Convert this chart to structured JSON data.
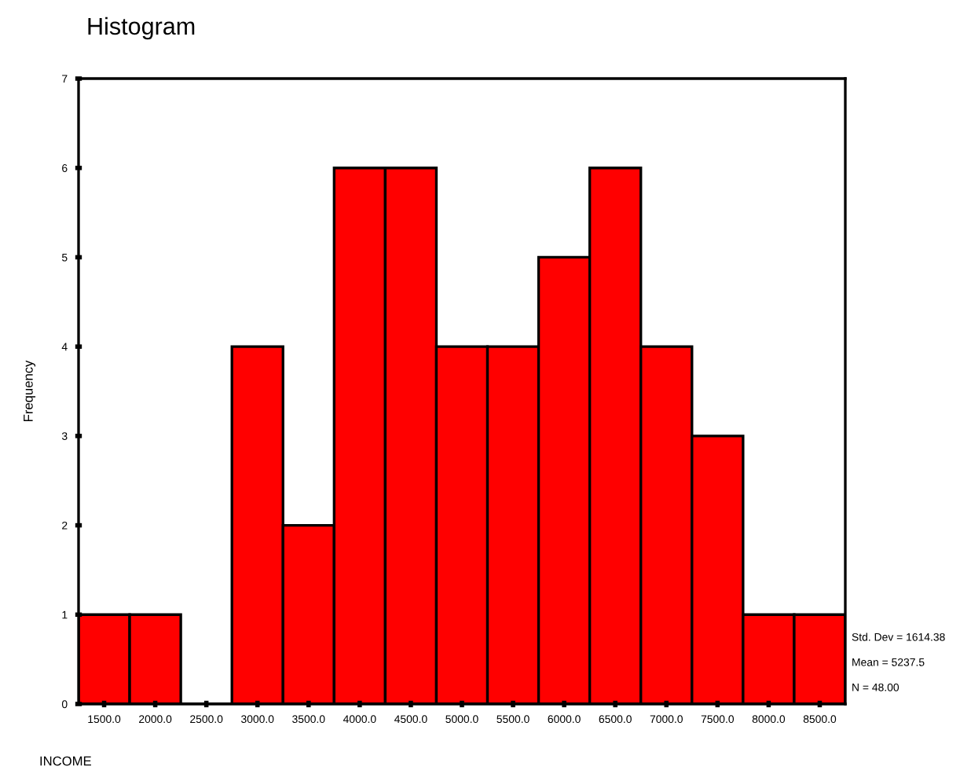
{
  "chart_data": {
    "type": "histogram",
    "title": "Histogram",
    "xlabel": "INCOME",
    "ylabel": "Frequency",
    "bins": [
      1250,
      1750,
      2250,
      2750,
      3250,
      3750,
      4250,
      4750,
      5250,
      5750,
      6250,
      6750,
      7250,
      7750,
      8250,
      8750
    ],
    "values": [
      1,
      1,
      0,
      4,
      2,
      6,
      6,
      4,
      4,
      5,
      6,
      4,
      3,
      1,
      1
    ],
    "color": "#ff0000",
    "xlim": [
      1250,
      8750
    ],
    "xticks": [
      {
        "value": 1500,
        "label": "1500.0"
      },
      {
        "value": 2000,
        "label": "2000.0"
      },
      {
        "value": 2500,
        "label": "2500.0"
      },
      {
        "value": 3000,
        "label": "3000.0"
      },
      {
        "value": 3500,
        "label": "3500.0"
      },
      {
        "value": 4000,
        "label": "4000.0"
      },
      {
        "value": 4500,
        "label": "4500.0"
      },
      {
        "value": 5000,
        "label": "5000.0"
      },
      {
        "value": 5500,
        "label": "5500.0"
      },
      {
        "value": 6000,
        "label": "6000.0"
      },
      {
        "value": 6500,
        "label": "6500.0"
      },
      {
        "value": 7000,
        "label": "7000.0"
      },
      {
        "value": 7500,
        "label": "7500.0"
      },
      {
        "value": 8000,
        "label": "8000.0"
      },
      {
        "value": 8500,
        "label": "8500.0"
      }
    ],
    "ylim": [
      0,
      7
    ],
    "yticks": [
      0,
      1,
      2,
      3,
      4,
      5,
      6,
      7
    ],
    "grid": false,
    "legend": false,
    "annotations": [
      "Std. Dev = 1614.38",
      "Mean = 5237.5",
      "N = 48.00"
    ]
  }
}
